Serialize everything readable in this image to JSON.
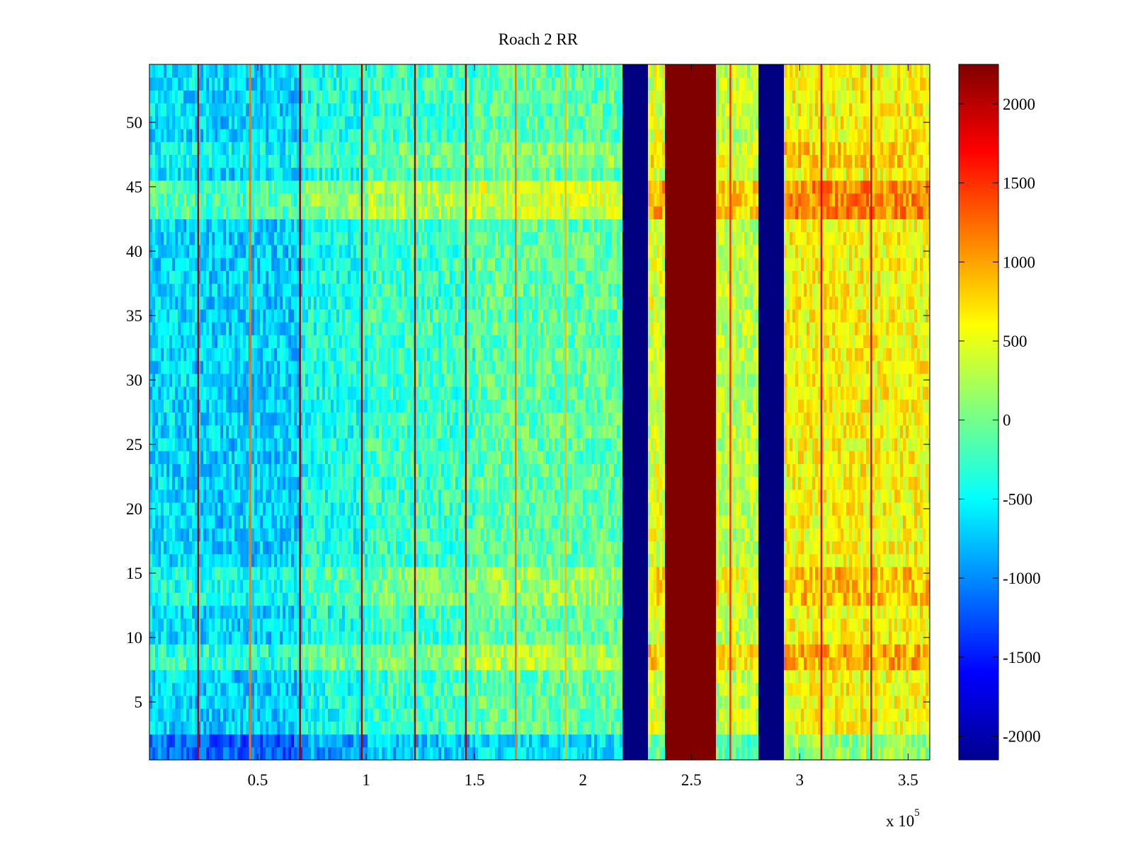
{
  "chart_data": {
    "type": "heatmap",
    "title": "Roach 2 RR",
    "xlabel": "",
    "ylabel": "",
    "x_exponent_label": "x 10",
    "x_exponent_power": "5",
    "xlim": [
      0,
      360000
    ],
    "ylim": [
      0.5,
      54.5
    ],
    "x_ticks": [
      0.5,
      1,
      1.5,
      2,
      2.5,
      3,
      3.5
    ],
    "x_tick_labels": [
      "0.5",
      "1",
      "1.5",
      "2",
      "2.5",
      "3",
      "3.5"
    ],
    "y_ticks": [
      5,
      10,
      15,
      20,
      25,
      30,
      35,
      40,
      45,
      50
    ],
    "y_tick_labels": [
      "5",
      "10",
      "15",
      "20",
      "25",
      "30",
      "35",
      "40",
      "45",
      "50"
    ],
    "rows": 54,
    "colormap": "jet",
    "clim": [
      -2150,
      2250
    ],
    "colorbar": {
      "ticks": [
        -2000,
        -1500,
        -1000,
        -500,
        0,
        500,
        1000,
        1500,
        2000
      ],
      "tick_labels": [
        "-2000",
        "-1500",
        "-1000",
        "-500",
        "0",
        "500",
        "1000",
        "1500",
        "2000"
      ]
    },
    "column_bands": [
      {
        "x_start": 0,
        "x_end": 20000,
        "value": -650
      },
      {
        "x_start": 20000,
        "x_end": 70000,
        "value": -700
      },
      {
        "x_start": 70000,
        "x_end": 100000,
        "value": -400
      },
      {
        "x_start": 100000,
        "x_end": 150000,
        "value": -250
      },
      {
        "x_start": 150000,
        "x_end": 217000,
        "value": -100
      },
      {
        "x_start": 217000,
        "x_end": 229000,
        "value": -2150
      },
      {
        "x_start": 229000,
        "x_end": 237000,
        "value": 450
      },
      {
        "x_start": 237000,
        "x_end": 261000,
        "value": 2250
      },
      {
        "x_start": 261000,
        "x_end": 280000,
        "value": 300
      },
      {
        "x_start": 280000,
        "x_end": 292000,
        "value": -2150
      },
      {
        "x_start": 292000,
        "x_end": 360000,
        "value": 600
      }
    ],
    "row_bands": [
      {
        "rows": [
          1,
          2
        ],
        "offset": -500
      },
      {
        "rows": [
          8,
          9
        ],
        "offset": 350
      },
      {
        "rows": [
          13,
          15
        ],
        "offset": 250
      },
      {
        "rows": [
          43,
          45
        ],
        "offset": 500
      },
      {
        "rows": [
          47,
          48
        ],
        "offset": 200
      }
    ],
    "vertical_lines": [
      {
        "x": 22500,
        "value": 2000
      },
      {
        "x": 46500,
        "value": 1200
      },
      {
        "x": 69500,
        "value": 2100
      },
      {
        "x": 98000,
        "value": 2100
      },
      {
        "x": 122500,
        "value": 2100
      },
      {
        "x": 146000,
        "value": 2100
      },
      {
        "x": 169000,
        "value": 1200
      },
      {
        "x": 192000,
        "value": 900
      },
      {
        "x": 268000,
        "value": 1500
      },
      {
        "x": 310000,
        "value": 1800
      },
      {
        "x": 333000,
        "value": 1800
      }
    ]
  }
}
